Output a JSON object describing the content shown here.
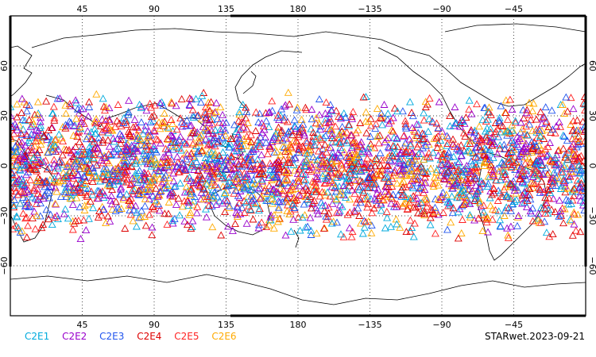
{
  "map": {
    "x_ticks_top": [
      "45",
      "90",
      "135",
      "180",
      "−135",
      "−90",
      "−45"
    ],
    "x_ticks_bottom": [
      "45",
      "90",
      "135",
      "180",
      "−135",
      "−90",
      "−45"
    ],
    "y_ticks": [
      "60",
      "30",
      "0",
      "−30",
      "−60"
    ],
    "lon_range": [
      0,
      360
    ],
    "lat_range": [
      -90,
      90
    ],
    "projection": "cylindrical equidistant, 0°E centered",
    "grid": "dotted lines every 45° longitude and 30° latitude",
    "marker": "open triangle",
    "coverage_lat_range": [
      -45,
      45
    ]
  },
  "legend": [
    {
      "label": "C2E1",
      "color": "#00aadd"
    },
    {
      "label": "C2E2",
      "color": "#9900cc"
    },
    {
      "label": "C2E3",
      "color": "#2255ee"
    },
    {
      "label": "C2E4",
      "color": "#dd0000"
    },
    {
      "label": "C2E5",
      "color": "#ff2222"
    },
    {
      "label": "C2E6",
      "color": "#ffaa00"
    }
  ],
  "stamp": "STARwet.2023-09-21"
}
